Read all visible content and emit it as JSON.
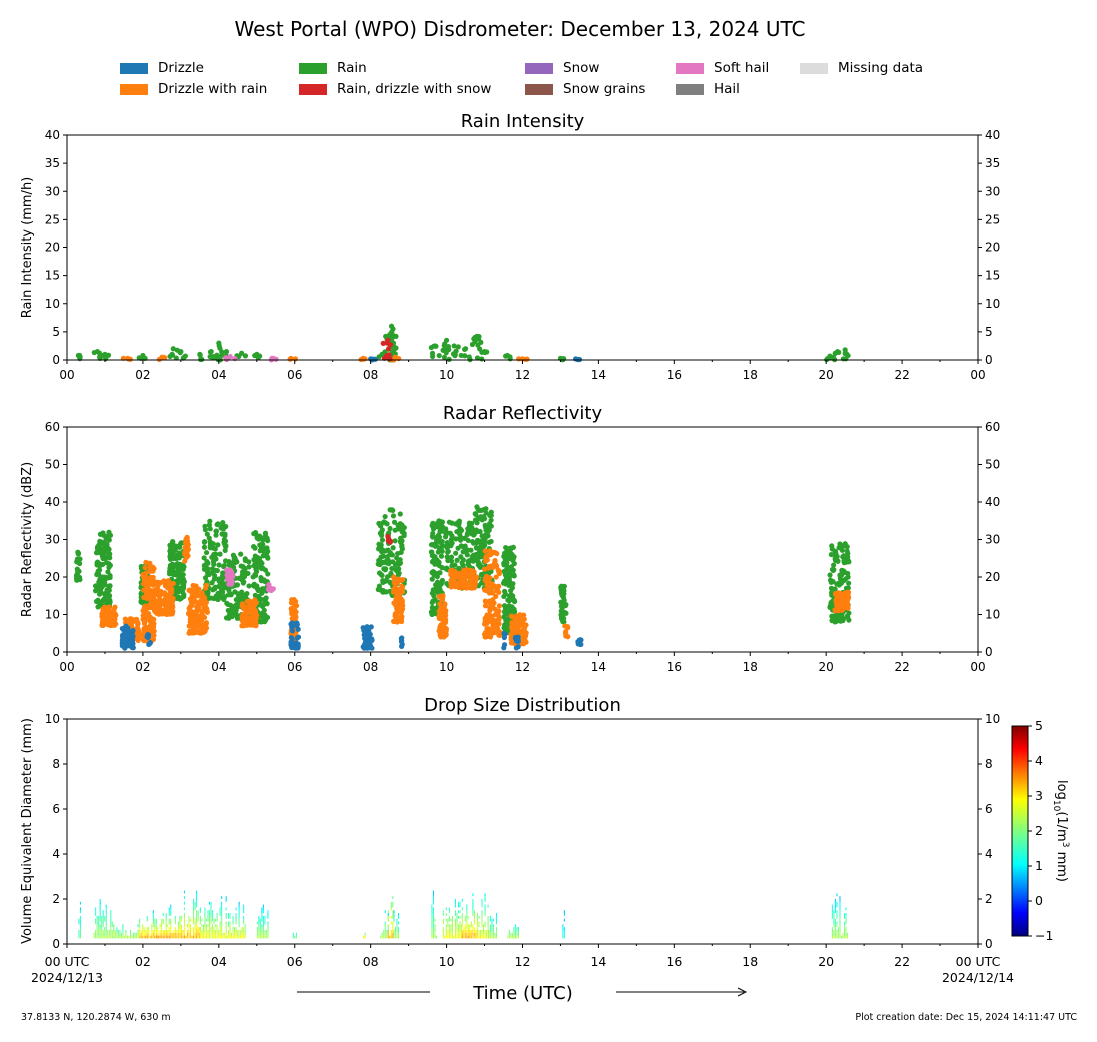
{
  "title": "West Portal (WPO) Disdrometer: December 13, 2024 UTC",
  "legend": [
    {
      "label": "Drizzle",
      "color": "#1f77b4"
    },
    {
      "label": "Drizzle with rain",
      "color": "#ff7f0e"
    },
    {
      "label": "Rain",
      "color": "#2ca02c"
    },
    {
      "label": "Rain, drizzle with snow",
      "color": "#d62728"
    },
    {
      "label": "Snow",
      "color": "#9467bd"
    },
    {
      "label": "Snow grains",
      "color": "#8c564b"
    },
    {
      "label": "Soft hail",
      "color": "#e377c2"
    },
    {
      "label": "Hail",
      "color": "#7f7f7f"
    },
    {
      "label": "Missing data",
      "color": "#dcdcdc"
    }
  ],
  "xlabel": "Time (UTC)",
  "x_ticks": [
    "00",
    "02",
    "04",
    "06",
    "08",
    "10",
    "12",
    "14",
    "16",
    "18",
    "20",
    "22",
    "00"
  ],
  "x_start_label": "00 UTC",
  "x_start_date": "2024/12/13",
  "x_end_label": "00 UTC",
  "x_end_date": "2024/12/14",
  "footer_left": "37.8133 N, 120.2874 W, 630 m",
  "footer_right": "Plot creation date: Dec 15, 2024 14:11:47 UTC",
  "colorbar": {
    "label": "log10(1/m3 mm)",
    "ticks": [
      "5",
      "4",
      "3",
      "2",
      "1",
      "0",
      "−1"
    ],
    "range": [
      -1,
      5
    ]
  },
  "chart_data": [
    {
      "type": "scatter",
      "title": "Rain Intensity",
      "ylabel": "Rain Intensity (mm/h)",
      "xlim": [
        0,
        24
      ],
      "ylim": [
        0,
        40
      ],
      "y_ticks": [
        "0",
        "5",
        "10",
        "15",
        "20",
        "25",
        "30",
        "35",
        "40"
      ],
      "series": [
        {
          "name": "Rain",
          "color": "#2ca02c",
          "x": [
            0.3,
            0.8,
            1.0,
            2.0,
            2.8,
            3.0,
            3.5,
            3.8,
            4.0,
            4.2,
            4.6,
            5.0,
            8.3,
            8.5,
            8.55,
            8.6,
            9.7,
            10.0,
            10.2,
            10.5,
            10.8,
            11.0,
            11.6,
            13.0,
            20.1,
            20.3,
            20.5
          ],
          "y": [
            0.8,
            1.5,
            1.0,
            0.8,
            2.0,
            1.5,
            1.0,
            1.5,
            3.0,
            1.5,
            1.2,
            1.0,
            1.0,
            4.5,
            6.0,
            3.0,
            2.5,
            3.5,
            2.5,
            2.0,
            4.2,
            1.5,
            0.8,
            0.3,
            0.7,
            1.5,
            1.8
          ]
        },
        {
          "name": "Drizzle with rain",
          "color": "#ff7f0e",
          "x": [
            1.6,
            2.5,
            5.9,
            7.8,
            8.65,
            12.0
          ],
          "y": [
            0.3,
            0.5,
            0.3,
            0.3,
            0.5,
            0.2
          ]
        },
        {
          "name": "Drizzle",
          "color": "#1f77b4",
          "x": [
            8.0,
            13.4
          ],
          "y": [
            0.2,
            0.2
          ]
        },
        {
          "name": "Soft hail",
          "color": "#e377c2",
          "x": [
            4.3,
            5.4
          ],
          "y": [
            0.6,
            0.3
          ]
        },
        {
          "name": "Rain, drizzle with snow",
          "color": "#d62728",
          "x": [
            8.45
          ],
          "y": [
            3.5
          ]
        }
      ]
    },
    {
      "type": "scatter",
      "title": "Radar Reflectivity",
      "ylabel": "Radar Reflectivity (dBZ)",
      "xlim": [
        0,
        24
      ],
      "ylim": [
        0,
        60
      ],
      "y_ticks": [
        "0",
        "10",
        "20",
        "30",
        "40",
        "50",
        "60"
      ],
      "clusters": [
        {
          "name": "Rain",
          "color": "#2ca02c",
          "groups": [
            {
              "x": [
                0.25,
                0.35
              ],
              "y": [
                19,
                27
              ]
            },
            {
              "x": [
                0.75,
                1.15
              ],
              "y": [
                12,
                32
              ]
            },
            {
              "x": [
                1.95,
                2.15
              ],
              "y": [
                13,
                24
              ]
            },
            {
              "x": [
                2.7,
                3.1
              ],
              "y": [
                14,
                30
              ]
            },
            {
              "x": [
                3.6,
                4.2
              ],
              "y": [
                14,
                35
              ]
            },
            {
              "x": [
                4.2,
                4.8
              ],
              "y": [
                9,
                27
              ]
            },
            {
              "x": [
                4.9,
                5.3
              ],
              "y": [
                8,
                32
              ]
            },
            {
              "x": [
                8.2,
                8.9
              ],
              "y": [
                15,
                38
              ]
            },
            {
              "x": [
                9.6,
                9.9
              ],
              "y": [
                10,
                35
              ]
            },
            {
              "x": [
                9.95,
                10.7
              ],
              "y": [
                17,
                35
              ]
            },
            {
              "x": [
                10.7,
                11.2
              ],
              "y": [
                17,
                39
              ]
            },
            {
              "x": [
                11.5,
                11.8
              ],
              "y": [
                5,
                28
              ]
            },
            {
              "x": [
                13.0,
                13.15
              ],
              "y": [
                8,
                18
              ]
            },
            {
              "x": [
                20.1,
                20.6
              ],
              "y": [
                8,
                29
              ]
            }
          ]
        },
        {
          "name": "Drizzle with rain",
          "color": "#ff7f0e",
          "groups": [
            {
              "x": [
                0.9,
                1.3
              ],
              "y": [
                7,
                12
              ]
            },
            {
              "x": [
                1.5,
                1.9
              ],
              "y": [
                3,
                9
              ]
            },
            {
              "x": [
                2.0,
                2.3
              ],
              "y": [
                3,
                24
              ]
            },
            {
              "x": [
                2.3,
                2.8
              ],
              "y": [
                10,
                19
              ]
            },
            {
              "x": [
                3.2,
                3.7
              ],
              "y": [
                5,
                18
              ]
            },
            {
              "x": [
                3.1,
                3.2
              ],
              "y": [
                24,
                31
              ]
            },
            {
              "x": [
                4.6,
                5.0
              ],
              "y": [
                7,
                14
              ]
            },
            {
              "x": [
                5.9,
                6.05
              ],
              "y": [
                3,
                14
              ]
            },
            {
              "x": [
                8.6,
                8.85
              ],
              "y": [
                8,
                20
              ]
            },
            {
              "x": [
                9.8,
                10.0
              ],
              "y": [
                4,
                15
              ]
            },
            {
              "x": [
                10.1,
                10.8
              ],
              "y": [
                17,
                22
              ]
            },
            {
              "x": [
                11.0,
                11.4
              ],
              "y": [
                4,
                27
              ]
            },
            {
              "x": [
                11.7,
                12.1
              ],
              "y": [
                2,
                10
              ]
            },
            {
              "x": [
                13.1,
                13.2
              ],
              "y": [
                4,
                7
              ]
            },
            {
              "x": [
                20.2,
                20.6
              ],
              "y": [
                11,
                16
              ]
            }
          ]
        },
        {
          "name": "Drizzle",
          "color": "#1f77b4",
          "groups": [
            {
              "x": [
                1.45,
                1.75
              ],
              "y": [
                1,
                7
              ]
            },
            {
              "x": [
                2.1,
                2.2
              ],
              "y": [
                2,
                5
              ]
            },
            {
              "x": [
                5.9,
                6.1
              ],
              "y": [
                1,
                8
              ]
            },
            {
              "x": [
                7.8,
                8.05
              ],
              "y": [
                1,
                7
              ]
            },
            {
              "x": [
                8.8,
                8.85
              ],
              "y": [
                1,
                4
              ]
            },
            {
              "x": [
                11.5,
                11.55
              ],
              "y": [
                1,
                5
              ]
            },
            {
              "x": [
                11.8,
                11.9
              ],
              "y": [
                1,
                4
              ]
            },
            {
              "x": [
                13.4,
                13.55
              ],
              "y": [
                2,
                4
              ]
            }
          ]
        },
        {
          "name": "Soft hail",
          "color": "#e377c2",
          "groups": [
            {
              "x": [
                4.2,
                4.4
              ],
              "y": [
                18,
                22
              ]
            },
            {
              "x": [
                5.3,
                5.45
              ],
              "y": [
                16,
                18
              ]
            }
          ]
        },
        {
          "name": "Rain, drizzle with snow",
          "color": "#d62728",
          "groups": [
            {
              "x": [
                8.45,
                8.55
              ],
              "y": [
                29,
                31
              ]
            }
          ]
        }
      ]
    },
    {
      "type": "heatmap",
      "title": "Drop Size Distribution",
      "ylabel": "Volume Equivalent Diameter (mm)",
      "xlim": [
        0,
        24
      ],
      "ylim": [
        0,
        10
      ],
      "y_ticks": [
        "0",
        "2",
        "4",
        "6",
        "8",
        "10"
      ],
      "bands": [
        {
          "x": [
            0.3,
            0.35
          ],
          "top": 2.0,
          "peak": 2.0
        },
        {
          "x": [
            0.7,
            1.3
          ],
          "top": 2.2,
          "peak": 2.5
        },
        {
          "x": [
            1.3,
            1.9
          ],
          "top": 1.0,
          "peak": 2.5
        },
        {
          "x": [
            1.9,
            2.4
          ],
          "top": 1.5,
          "peak": 3.5
        },
        {
          "x": [
            2.4,
            3.0
          ],
          "top": 1.8,
          "peak": 3.5
        },
        {
          "x": [
            3.0,
            3.5
          ],
          "top": 2.4,
          "peak": 3.5
        },
        {
          "x": [
            3.5,
            4.2
          ],
          "top": 2.2,
          "peak": 3.0
        },
        {
          "x": [
            4.2,
            4.7
          ],
          "top": 1.8,
          "peak": 3.0
        },
        {
          "x": [
            5.0,
            5.3
          ],
          "top": 1.7,
          "peak": 2.5
        },
        {
          "x": [
            5.95,
            6.05
          ],
          "top": 1.0,
          "peak": 2.0
        },
        {
          "x": [
            7.8,
            7.85
          ],
          "top": 0.6,
          "peak": 3.0
        },
        {
          "x": [
            8.25,
            8.45
          ],
          "top": 1.5,
          "peak": 2.5
        },
        {
          "x": [
            8.45,
            8.6
          ],
          "top": 3.4,
          "peak": 3.5
        },
        {
          "x": [
            8.6,
            8.75
          ],
          "top": 1.5,
          "peak": 2.5
        },
        {
          "x": [
            9.6,
            9.75
          ],
          "top": 2.4,
          "peak": 2.5
        },
        {
          "x": [
            9.9,
            10.4
          ],
          "top": 2.4,
          "peak": 3.0
        },
        {
          "x": [
            10.4,
            10.8
          ],
          "top": 2.3,
          "peak": 3.5
        },
        {
          "x": [
            10.8,
            11.1
          ],
          "top": 2.5,
          "peak": 3.0
        },
        {
          "x": [
            11.1,
            11.3
          ],
          "top": 1.5,
          "peak": 2.5
        },
        {
          "x": [
            11.6,
            11.9
          ],
          "top": 1.0,
          "peak": 2.5
        },
        {
          "x": [
            13.05,
            13.1
          ],
          "top": 1.5,
          "peak": 1.5
        },
        {
          "x": [
            20.15,
            20.55
          ],
          "top": 2.2,
          "peak": 2.5
        }
      ]
    }
  ]
}
